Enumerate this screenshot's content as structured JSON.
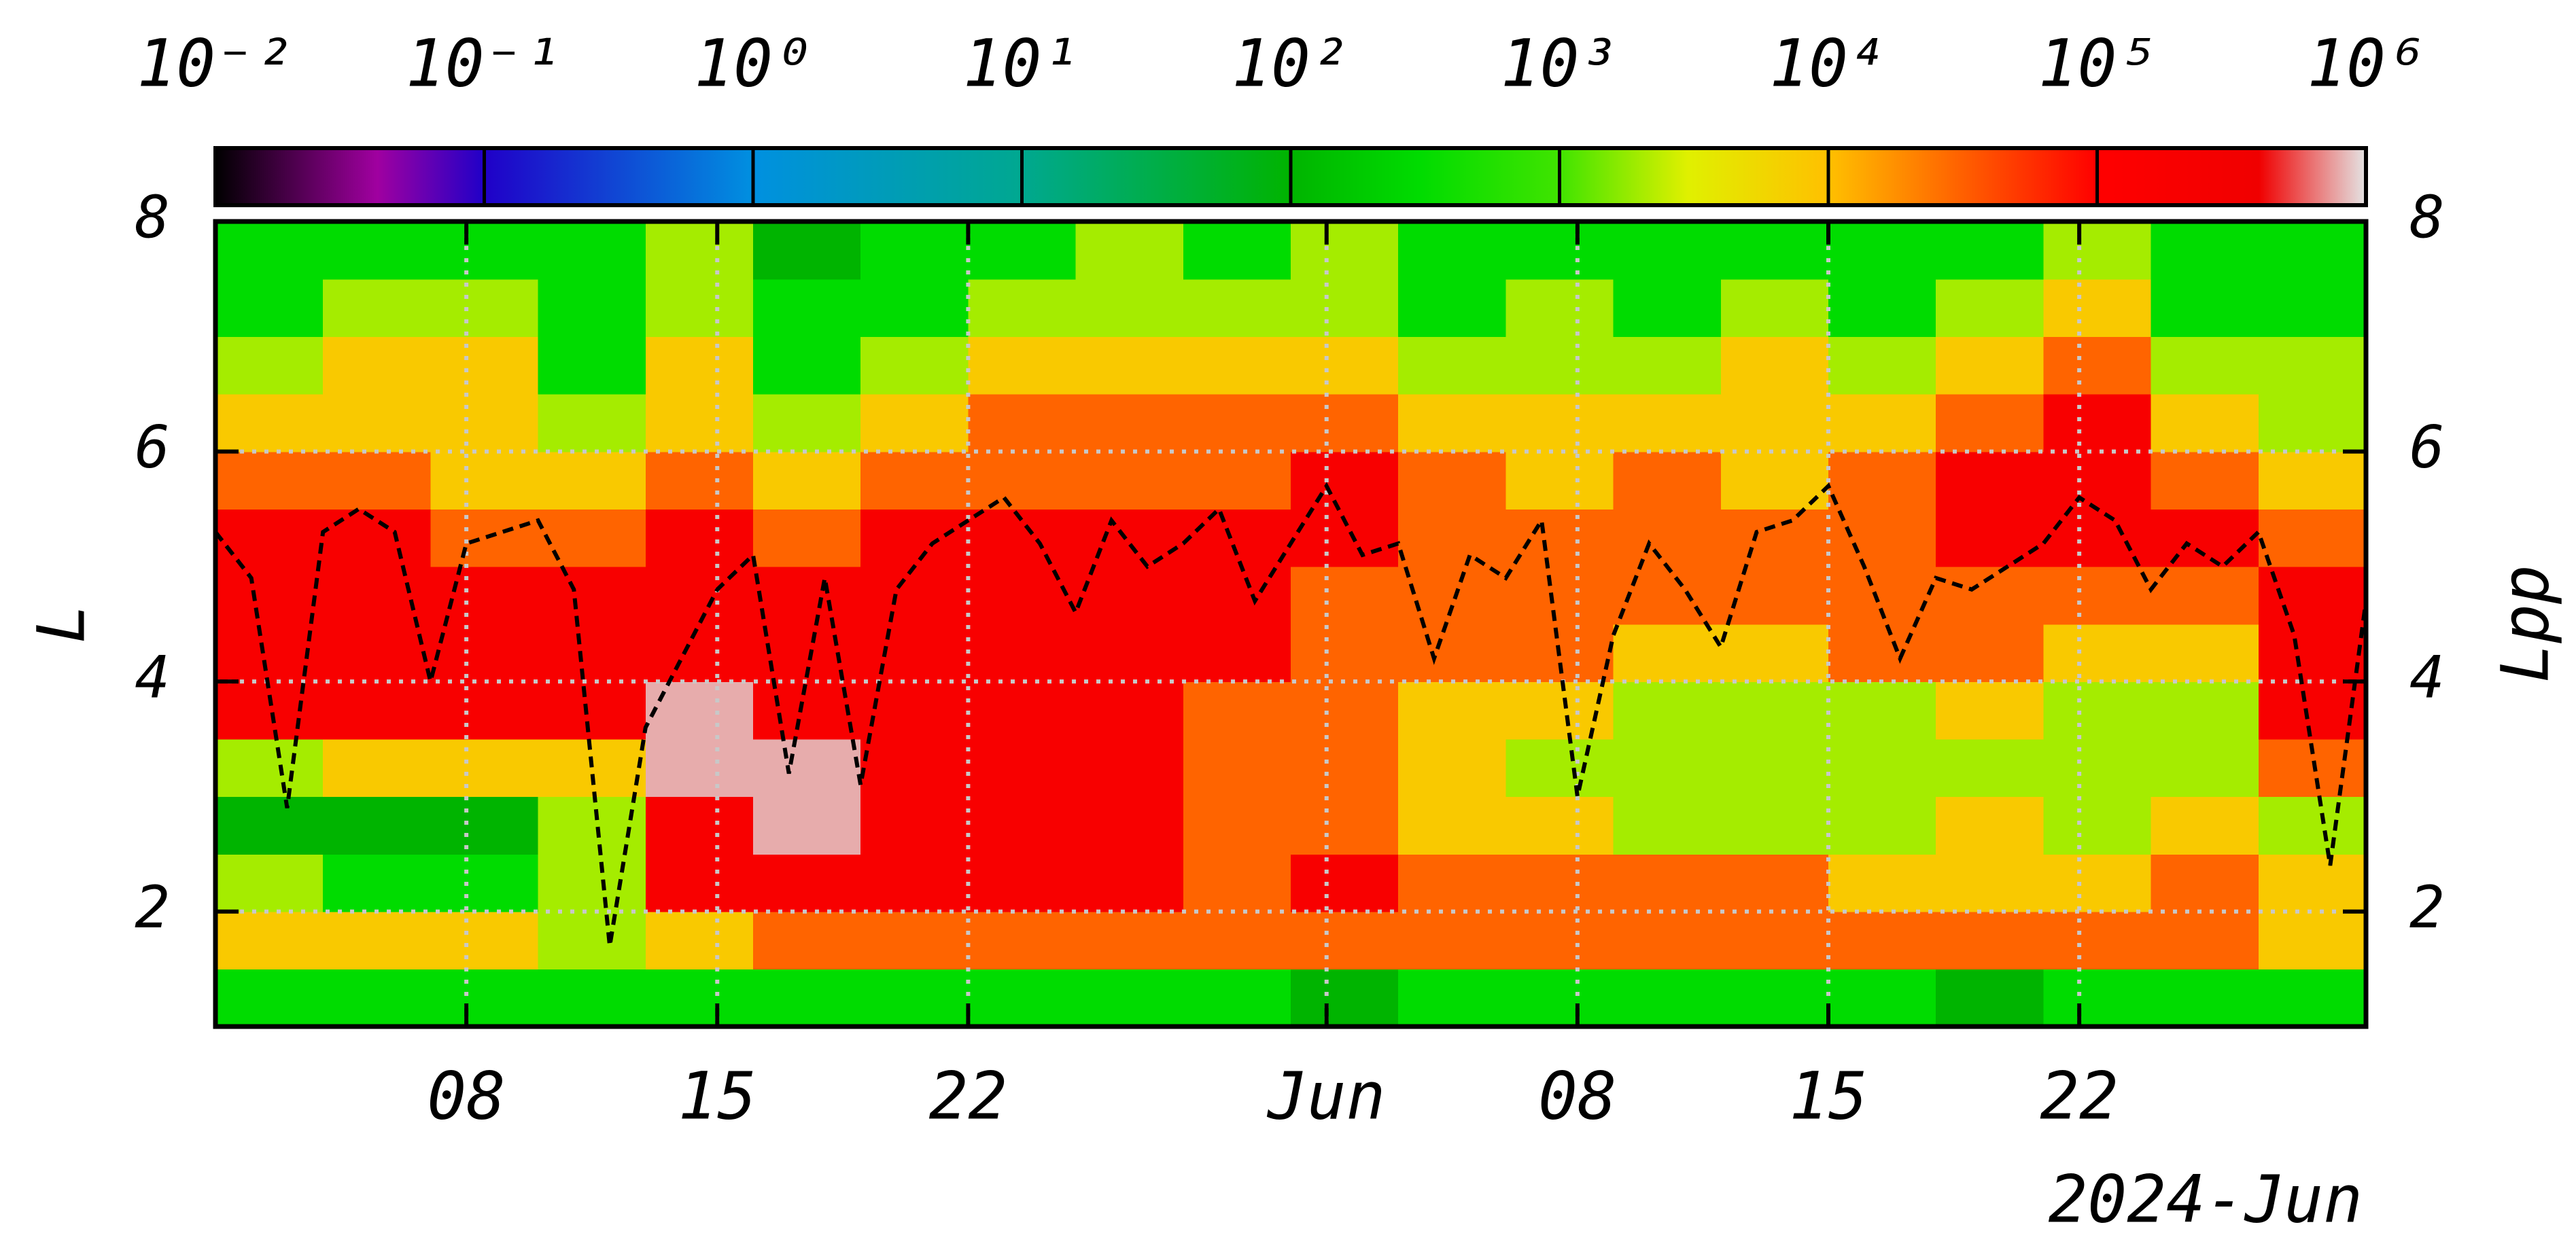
{
  "chart_data": {
    "type": "heatmap",
    "ylabel": "L",
    "y2label": "Lpp",
    "xlabel": "2024-Jun",
    "xlim": [
      "2024-05-01",
      "2024-06-30"
    ],
    "xticks": [
      {
        "value": "2024-05-08",
        "label": "08"
      },
      {
        "value": "2024-05-15",
        "label": "15"
      },
      {
        "value": "2024-05-22",
        "label": "22"
      },
      {
        "value": "2024-06-01",
        "label": "Jun"
      },
      {
        "value": "2024-06-08",
        "label": "08"
      },
      {
        "value": "2024-06-15",
        "label": "15"
      },
      {
        "value": "2024-06-22",
        "label": "22"
      }
    ],
    "ylim": [
      1,
      8
    ],
    "yticks": [
      2,
      4,
      6,
      8
    ],
    "y2lim": [
      1,
      8
    ],
    "y2ticks": [
      2,
      4,
      6,
      8
    ],
    "grid": true,
    "clog": true,
    "clim": [
      0.01,
      1000000
    ],
    "cticks": [
      {
        "value": 0.01,
        "label": "10⁻²"
      },
      {
        "value": 0.1,
        "label": "10⁻¹"
      },
      {
        "value": 1,
        "label": "10⁰"
      },
      {
        "value": 10,
        "label": "10¹"
      },
      {
        "value": 100,
        "label": "10²"
      },
      {
        "value": 1000,
        "label": "10³"
      },
      {
        "value": 10000,
        "label": "10⁴"
      },
      {
        "value": 100000,
        "label": "10⁵"
      },
      {
        "value": 1000000,
        "label": "10⁶"
      }
    ],
    "colorscale": [
      {
        "value": 0.01,
        "color": "#000000"
      },
      {
        "value": 0.04,
        "color": "#a000a0"
      },
      {
        "value": 0.1,
        "color": "#2000c8"
      },
      {
        "value": 1,
        "color": "#0090e0"
      },
      {
        "value": 10,
        "color": "#00a890"
      },
      {
        "value": 100,
        "color": "#00b400"
      },
      {
        "value": 300,
        "color": "#00dc00"
      },
      {
        "value": 1000,
        "color": "#40e400"
      },
      {
        "value": 3000,
        "color": "#e0f000"
      },
      {
        "value": 10000,
        "color": "#ffc000"
      },
      {
        "value": 30000,
        "color": "#ff6400"
      },
      {
        "value": 100000,
        "color": "#ff0000"
      },
      {
        "value": 400000,
        "color": "#f00000"
      },
      {
        "value": 1000000,
        "color": "#e4e4e4"
      }
    ],
    "xbins": [
      "2024-05-01",
      "2024-05-04",
      "2024-05-07",
      "2024-05-10",
      "2024-05-13",
      "2024-05-16",
      "2024-05-19",
      "2024-05-22",
      "2024-05-25",
      "2024-05-28",
      "2024-05-31",
      "2024-06-03",
      "2024-06-06",
      "2024-06-09",
      "2024-06-12",
      "2024-06-15",
      "2024-06-18",
      "2024-06-21",
      "2024-06-24",
      "2024-06-27",
      "2024-06-30"
    ],
    "ybins": [
      1,
      1.5,
      2,
      2.5,
      3,
      3.5,
      4,
      4.5,
      5,
      5.5,
      6,
      6.5,
      7,
      7.5,
      8
    ],
    "z": [
      [
        300,
        300,
        300,
        300,
        300,
        300,
        300,
        300,
        300,
        300,
        100,
        300,
        300,
        300,
        300,
        300,
        100,
        300,
        300,
        300
      ],
      [
        8000,
        8000,
        8000,
        2000,
        8000,
        30000,
        30000,
        30000,
        30000,
        30000,
        30000,
        30000,
        30000,
        30000,
        30000,
        30000,
        30000,
        30000,
        30000,
        8000
      ],
      [
        2000,
        300,
        300,
        2000,
        200000,
        200000,
        200000,
        200000,
        200000,
        30000,
        200000,
        30000,
        30000,
        30000,
        30000,
        8000,
        8000,
        8000,
        30000,
        8000
      ],
      [
        100,
        100,
        100,
        2000,
        200000,
        800000,
        200000,
        200000,
        200000,
        30000,
        30000,
        8000,
        8000,
        2000,
        2000,
        2000,
        8000,
        2000,
        8000,
        2000
      ],
      [
        2000,
        8000,
        8000,
        8000,
        800000,
        800000,
        200000,
        200000,
        200000,
        30000,
        30000,
        8000,
        2000,
        2000,
        2000,
        2000,
        2000,
        2000,
        2000,
        30000
      ],
      [
        200000,
        200000,
        200000,
        200000,
        800000,
        200000,
        200000,
        200000,
        200000,
        30000,
        30000,
        8000,
        8000,
        2000,
        2000,
        2000,
        8000,
        2000,
        2000,
        200000
      ],
      [
        200000,
        200000,
        200000,
        200000,
        200000,
        200000,
        200000,
        200000,
        200000,
        200000,
        30000,
        30000,
        30000,
        8000,
        8000,
        30000,
        30000,
        8000,
        8000,
        200000
      ],
      [
        200000,
        200000,
        200000,
        200000,
        200000,
        200000,
        200000,
        200000,
        200000,
        200000,
        30000,
        30000,
        30000,
        30000,
        30000,
        30000,
        30000,
        30000,
        30000,
        200000
      ],
      [
        200000,
        200000,
        30000,
        30000,
        200000,
        30000,
        200000,
        200000,
        200000,
        200000,
        200000,
        30000,
        30000,
        30000,
        30000,
        30000,
        200000,
        200000,
        200000,
        30000
      ],
      [
        30000,
        30000,
        8000,
        8000,
        30000,
        8000,
        30000,
        30000,
        30000,
        30000,
        200000,
        30000,
        8000,
        30000,
        8000,
        30000,
        200000,
        200000,
        30000,
        8000
      ],
      [
        8000,
        8000,
        8000,
        2000,
        8000,
        2000,
        8000,
        30000,
        30000,
        30000,
        30000,
        8000,
        8000,
        8000,
        8000,
        8000,
        30000,
        200000,
        8000,
        2000
      ],
      [
        2000,
        8000,
        8000,
        300,
        8000,
        300,
        2000,
        8000,
        8000,
        8000,
        8000,
        2000,
        2000,
        2000,
        8000,
        2000,
        8000,
        30000,
        2000,
        2000
      ],
      [
        300,
        2000,
        2000,
        300,
        2000,
        300,
        300,
        2000,
        2000,
        2000,
        2000,
        300,
        2000,
        300,
        2000,
        300,
        2000,
        8000,
        300,
        300
      ],
      [
        300,
        300,
        300,
        300,
        2000,
        100,
        300,
        300,
        2000,
        300,
        2000,
        300,
        300,
        300,
        300,
        300,
        300,
        2000,
        300,
        300
      ]
    ],
    "lpp": {
      "color": "#000000",
      "x": [
        "2024-05-01",
        "2024-05-02",
        "2024-05-03",
        "2024-05-04",
        "2024-05-05",
        "2024-05-06",
        "2024-05-07",
        "2024-05-08",
        "2024-05-09",
        "2024-05-10",
        "2024-05-11",
        "2024-05-12",
        "2024-05-13",
        "2024-05-14",
        "2024-05-15",
        "2024-05-16",
        "2024-05-17",
        "2024-05-18",
        "2024-05-19",
        "2024-05-20",
        "2024-05-21",
        "2024-05-22",
        "2024-05-23",
        "2024-05-24",
        "2024-05-25",
        "2024-05-26",
        "2024-05-27",
        "2024-05-28",
        "2024-05-29",
        "2024-05-30",
        "2024-05-31",
        "2024-06-01",
        "2024-06-02",
        "2024-06-03",
        "2024-06-04",
        "2024-06-05",
        "2024-06-06",
        "2024-06-07",
        "2024-06-08",
        "2024-06-09",
        "2024-06-10",
        "2024-06-11",
        "2024-06-12",
        "2024-06-13",
        "2024-06-14",
        "2024-06-15",
        "2024-06-16",
        "2024-06-17",
        "2024-06-18",
        "2024-06-19",
        "2024-06-20",
        "2024-06-21",
        "2024-06-22",
        "2024-06-23",
        "2024-06-24",
        "2024-06-25",
        "2024-06-26",
        "2024-06-27",
        "2024-06-28",
        "2024-06-29",
        "2024-06-30"
      ],
      "values": [
        5.3,
        4.9,
        2.9,
        5.3,
        5.5,
        5.3,
        4.0,
        5.2,
        5.3,
        5.4,
        4.8,
        1.7,
        3.6,
        4.2,
        4.8,
        5.1,
        3.2,
        4.9,
        3.1,
        4.8,
        5.2,
        5.4,
        5.6,
        5.2,
        4.6,
        5.4,
        5.0,
        5.2,
        5.5,
        4.7,
        5.2,
        5.7,
        5.1,
        5.2,
        4.2,
        5.1,
        4.9,
        5.4,
        3.0,
        4.4,
        5.2,
        4.8,
        4.3,
        5.3,
        5.4,
        5.7,
        5.0,
        4.2,
        4.9,
        4.8,
        5.0,
        5.2,
        5.6,
        5.4,
        4.8,
        5.2,
        5.0,
        5.3,
        4.4,
        2.4,
        4.7
      ]
    }
  }
}
